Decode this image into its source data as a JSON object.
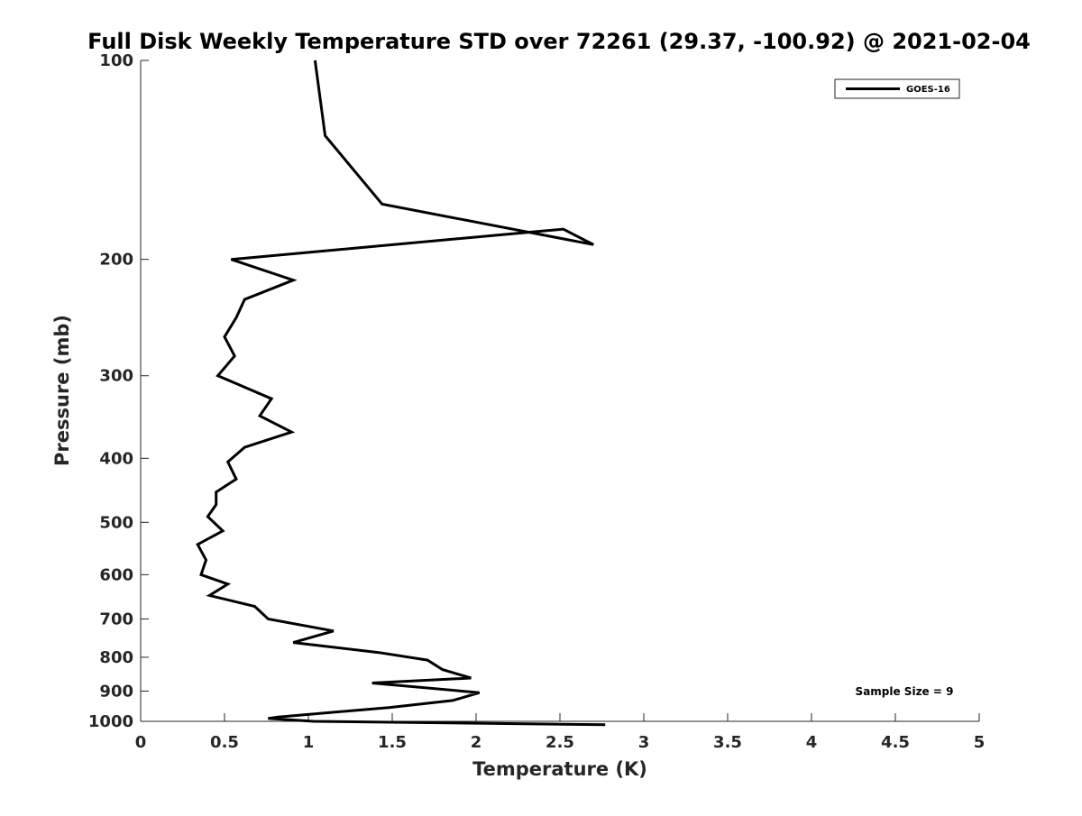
{
  "chart_data": {
    "type": "line",
    "title": "Full Disk Weekly Temperature STD over 72261 (29.37, -100.92) @ 2021-02-04",
    "xlabel": "Temperature (K)",
    "ylabel": "Pressure (mb)",
    "xlim": [
      0,
      5
    ],
    "ylim": [
      100,
      1000
    ],
    "y_scale": "log",
    "y_reversed": true,
    "x_ticks": [
      0,
      0.5,
      1,
      1.5,
      2,
      2.5,
      3,
      3.5,
      4,
      4.5,
      5
    ],
    "x_tick_labels": [
      "0",
      "0.5",
      "1",
      "1.5",
      "2",
      "2.5",
      "3",
      "3.5",
      "4",
      "4.5",
      "5"
    ],
    "y_ticks": [
      100,
      200,
      300,
      400,
      500,
      600,
      700,
      800,
      900,
      1000
    ],
    "y_tick_labels": [
      "100",
      "200",
      "300",
      "400",
      "500",
      "600",
      "700",
      "800",
      "900",
      "1000"
    ],
    "grid": false,
    "legend_position": "top-right",
    "annotation": "Sample Size = 9",
    "line_color": "#000000",
    "series": [
      {
        "name": "GOES-16",
        "x": [
          1.04,
          1.1,
          1.44,
          2.7,
          2.52,
          0.54,
          0.91,
          0.62,
          0.57,
          0.5,
          0.56,
          0.46,
          0.78,
          0.71,
          0.9,
          0.62,
          0.52,
          0.57,
          0.45,
          0.45,
          0.4,
          0.49,
          0.34,
          0.39,
          0.36,
          0.52,
          0.41,
          0.68,
          0.76,
          1.15,
          0.91,
          1.42,
          1.71,
          1.8,
          1.97,
          1.38,
          2.02,
          1.86,
          1.48,
          0.82,
          0.76,
          1.03,
          2.77
        ],
        "y": [
          100,
          130,
          165,
          190,
          180,
          200,
          215,
          230,
          245,
          262,
          280,
          300,
          325,
          345,
          365,
          385,
          405,
          430,
          450,
          470,
          490,
          515,
          540,
          570,
          600,
          620,
          645,
          670,
          700,
          730,
          760,
          787,
          808,
          835,
          860,
          875,
          905,
          930,
          953,
          985,
          990,
          1000,
          1012
        ]
      }
    ]
  }
}
